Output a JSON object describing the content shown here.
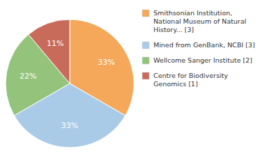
{
  "chart_data": {
    "type": "pie",
    "categories": [
      "Smithsonian Institution,\nNational Museum of Natural\nHistory... [3]",
      "Mined from GenBank, NCBI [3]",
      "Wellcome Sanger Institute [2]",
      "Centre for Biodiversity\nGenomics [1]"
    ],
    "values": [
      33,
      33,
      22,
      11
    ],
    "value_labels": [
      "33%",
      "33%",
      "22%",
      "11%"
    ],
    "colors": [
      "#F5A85A",
      "#AACBE8",
      "#94C47C",
      "#C96B5A"
    ],
    "data_labels": true,
    "legend": "right"
  }
}
